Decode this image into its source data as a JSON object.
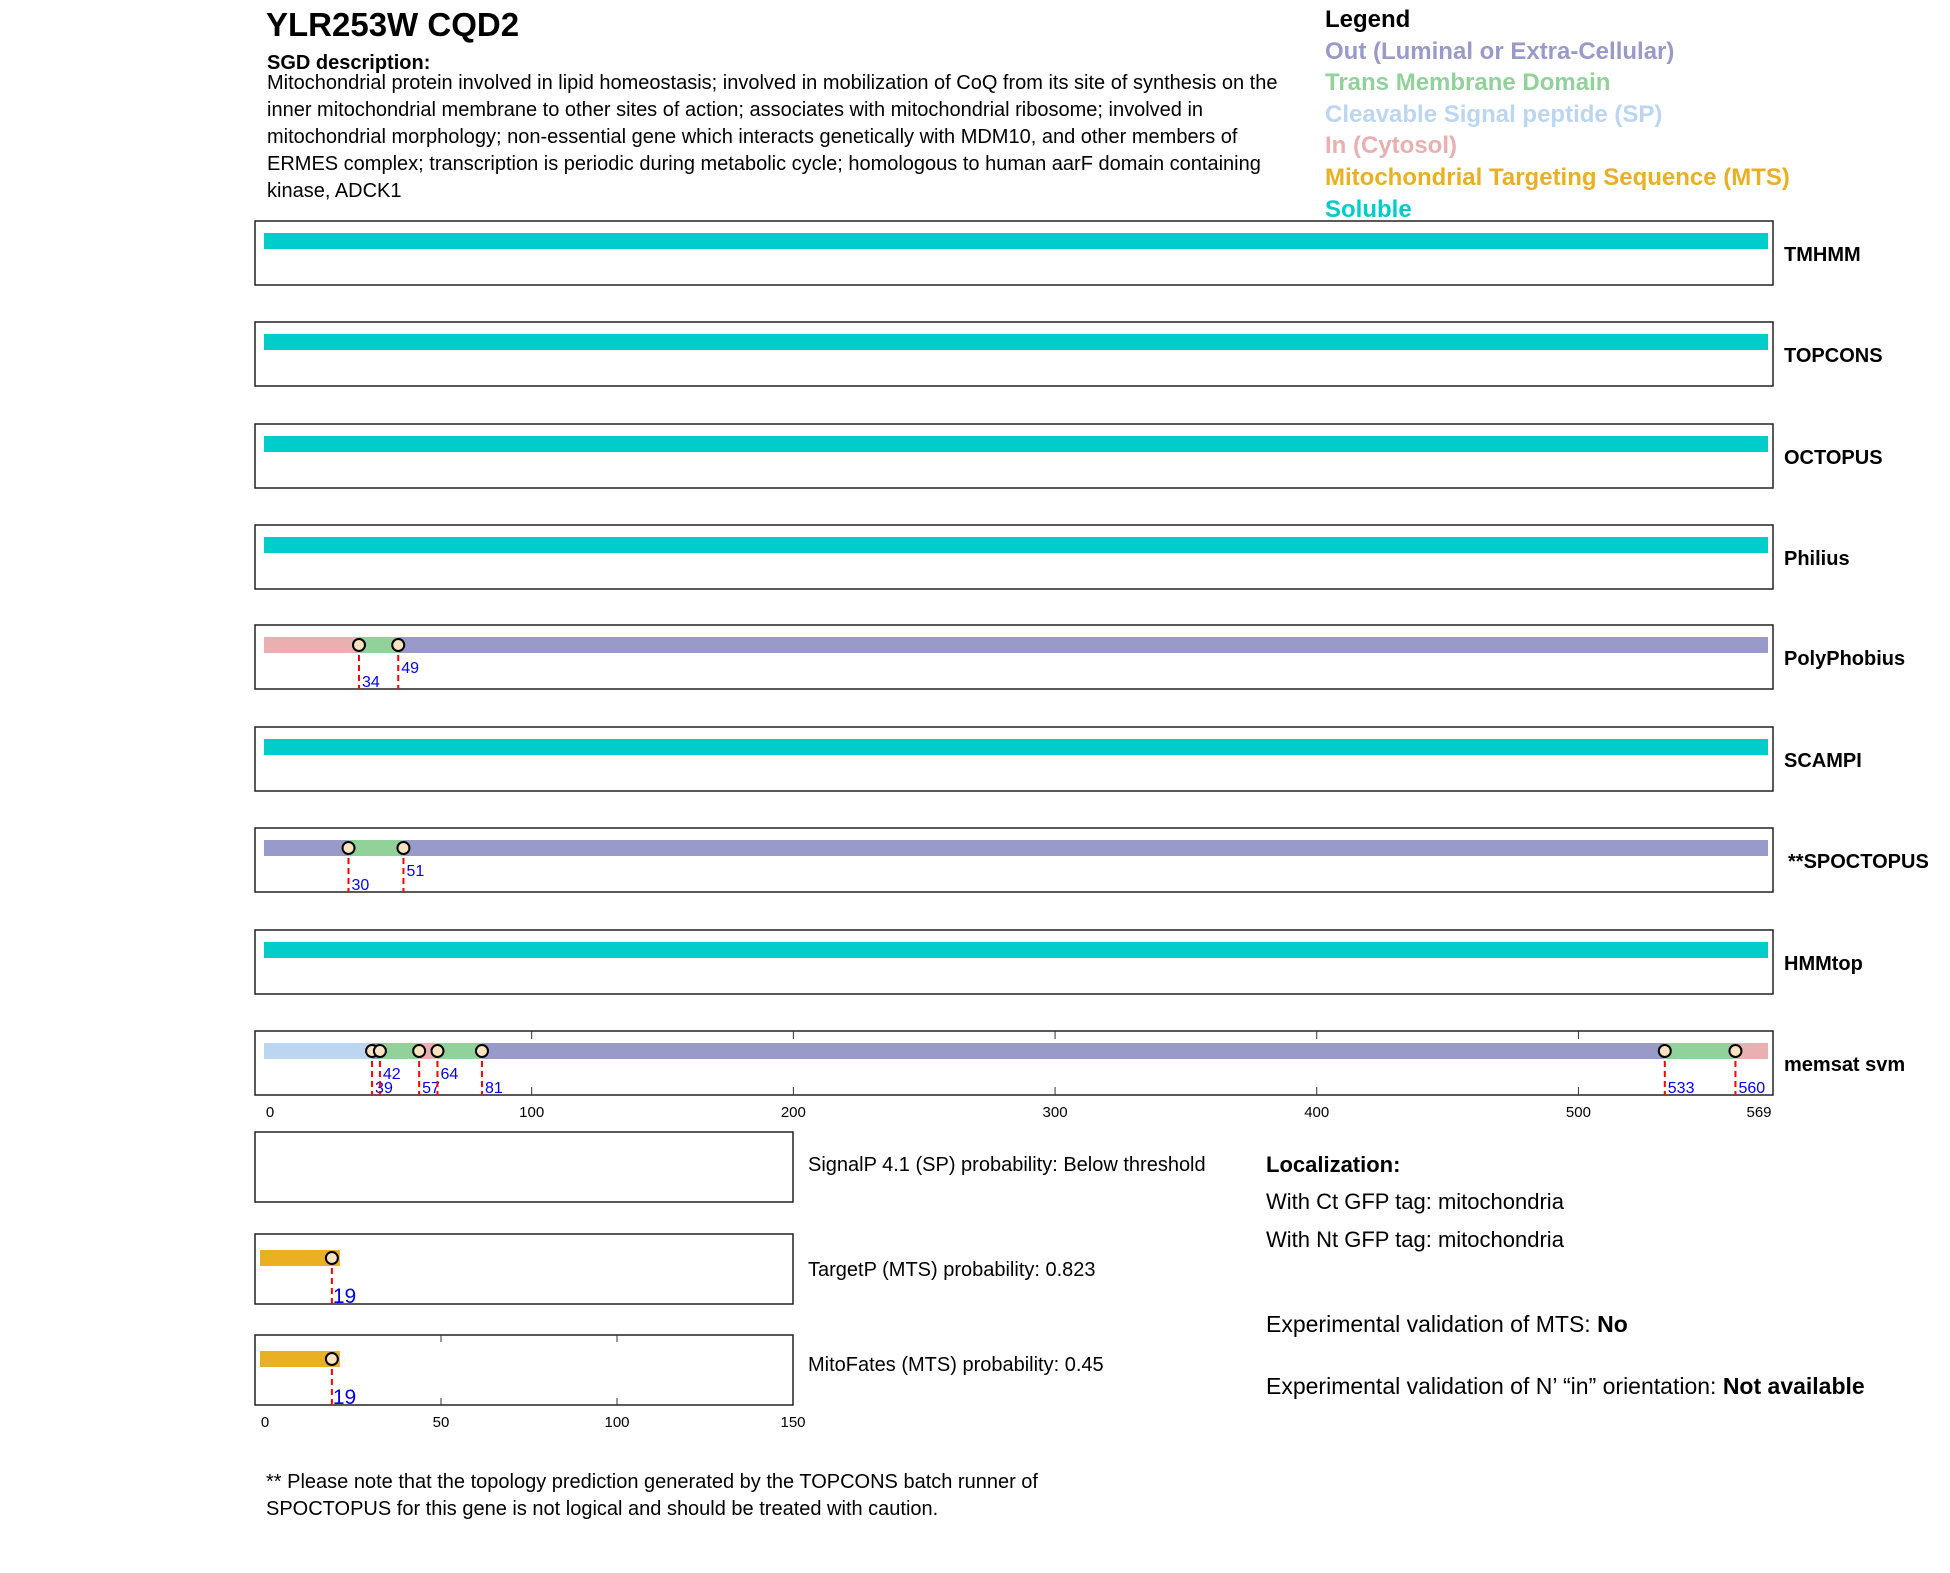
{
  "header": {
    "title": "YLR253W  CQD2",
    "desc_label": "SGD description:",
    "description": "Mitochondrial protein involved in lipid homeostasis; involved in mobilization of CoQ from its site of synthesis on the inner mitochondrial membrane to other sites of action; associates with mitochondrial ribosome; involved in mitochondrial morphology; non-essential gene which interacts genetically with MDM10, and other members of ERMES complex; transcription is periodic during metabolic cycle; homologous to human aarF domain containing kinase, ADCK1"
  },
  "legend": {
    "title": "Legend",
    "items": [
      {
        "label": "Out (Luminal or Extra-Cellular)",
        "color": "#9a9aca"
      },
      {
        "label": "Trans Membrane Domain",
        "color": "#90d29a"
      },
      {
        "label": "Cleavable Signal peptide (SP)",
        "color": "#bcd6f2"
      },
      {
        "label": "In (Cytosol)",
        "color": "#eaafb0"
      },
      {
        "label": "Mitochondrial Targeting Sequence (MTS)",
        "color": "#eab024"
      },
      {
        "label": "Soluble",
        "color": "#00cccc"
      }
    ]
  },
  "sequence_length": 569,
  "tracks": [
    {
      "name": "TMHMM",
      "segments": [
        [
          0,
          569,
          "soluble"
        ]
      ],
      "markers": []
    },
    {
      "name": "TOPCONS",
      "segments": [
        [
          0,
          569,
          "soluble"
        ]
      ],
      "markers": []
    },
    {
      "name": "OCTOPUS",
      "segments": [
        [
          0,
          569,
          "soluble"
        ]
      ],
      "markers": []
    },
    {
      "name": "Philius",
      "segments": [
        [
          0,
          569,
          "soluble"
        ]
      ],
      "markers": []
    },
    {
      "name": "PolyPhobius",
      "segments": [
        [
          0,
          34,
          "in"
        ],
        [
          34,
          49,
          "tm"
        ],
        [
          49,
          569,
          "out"
        ]
      ],
      "markers": [
        {
          "pos": 34,
          "label": "34",
          "row": 1
        },
        {
          "pos": 49,
          "label": "49",
          "row": 0
        }
      ]
    },
    {
      "name": "SCAMPI",
      "segments": [
        [
          0,
          569,
          "soluble"
        ]
      ],
      "markers": []
    },
    {
      "name": "**SPOCTOPUS",
      "segments": [
        [
          0,
          30,
          "out"
        ],
        [
          30,
          51,
          "tm"
        ],
        [
          51,
          569,
          "out"
        ]
      ],
      "markers": [
        {
          "pos": 30,
          "label": "30",
          "row": 1
        },
        {
          "pos": 51,
          "label": "51",
          "row": 0
        }
      ]
    },
    {
      "name": "HMMtop",
      "segments": [
        [
          0,
          569,
          "soluble"
        ]
      ],
      "markers": []
    },
    {
      "name": "memsat svm",
      "segments": [
        [
          0,
          39,
          "sp"
        ],
        [
          39,
          42,
          "out"
        ],
        [
          42,
          57,
          "tm"
        ],
        [
          57,
          64,
          "in"
        ],
        [
          64,
          81,
          "tm"
        ],
        [
          81,
          533,
          "out"
        ],
        [
          533,
          560,
          "tm"
        ],
        [
          560,
          569,
          "in"
        ]
      ],
      "markers": [
        {
          "pos": 39,
          "label": "39",
          "row": 1
        },
        {
          "pos": 42,
          "label": "42",
          "row": 0
        },
        {
          "pos": 57,
          "label": "57",
          "row": 1
        },
        {
          "pos": 64,
          "label": "64",
          "row": 0
        },
        {
          "pos": 81,
          "label": "81",
          "row": 1
        },
        {
          "pos": 533,
          "label": "533",
          "row": 1
        },
        {
          "pos": 560,
          "label": "560",
          "row": 1
        }
      ],
      "axis": [
        "0",
        "100",
        "200",
        "300",
        "400",
        "500",
        "569"
      ]
    }
  ],
  "small_axis": [
    "0",
    "50",
    "100",
    "150"
  ],
  "predictors": [
    {
      "label": "SignalP 4.1 (SP) probability: Below threshold",
      "end": null
    },
    {
      "label": "TargetP (MTS) probability: 0.823",
      "end": 19,
      "marker": "19"
    },
    {
      "label": "MitoFates (MTS) probability: 0.45",
      "end": 19,
      "marker": "19"
    }
  ],
  "localization": {
    "title": "Localization:",
    "ct": "With Ct GFP tag: mitochondria",
    "nt": "With Nt GFP tag: mitochondria"
  },
  "validation": {
    "mts_label": "Experimental validation of MTS: ",
    "mts_value": "No",
    "nin_label": "Experimental validation of N’ “in” orientation: ",
    "nin_value": "Not available"
  },
  "footnote": [
    "** Please note that the topology prediction generated by the TOPCONS batch runner of",
    "SPOCTOPUS for this gene is not logical and should be treated with caution."
  ]
}
